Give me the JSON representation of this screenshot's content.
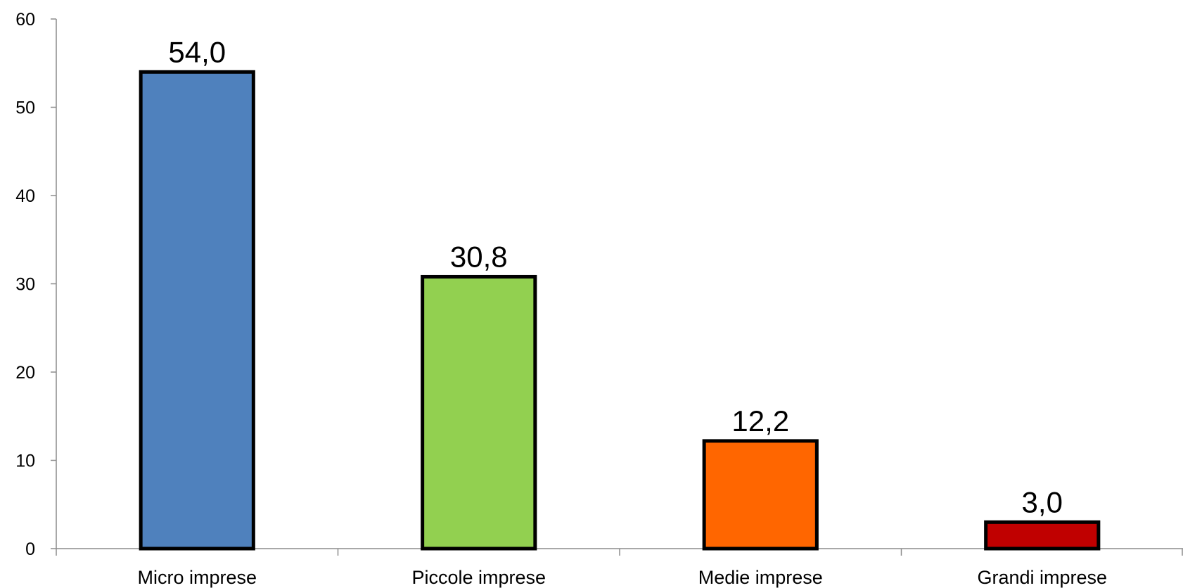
{
  "chart_data": {
    "type": "bar",
    "categories": [
      "Micro imprese",
      "Piccole imprese",
      "Medie imprese",
      "Grandi imprese"
    ],
    "values": [
      54.0,
      30.8,
      12.2,
      3.0
    ],
    "value_labels": [
      "54,0",
      "30,8",
      "12,2",
      "3,0"
    ],
    "colors": [
      "#4f81bd",
      "#92d050",
      "#ff6600",
      "#c00000"
    ],
    "ylim": [
      0,
      60
    ],
    "yticks": [
      0,
      10,
      20,
      30,
      40,
      50,
      60
    ],
    "grid": false,
    "legend": "none"
  }
}
